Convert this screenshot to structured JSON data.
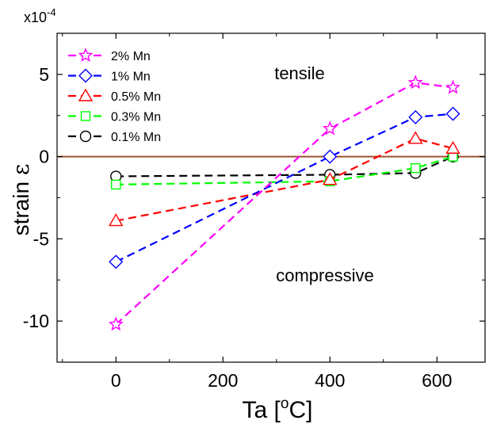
{
  "chart_data": {
    "type": "line",
    "multiplier_label": "x10",
    "multiplier_exp": "-4",
    "xlabel_main": "Ta [",
    "xlabel_sup": "o",
    "xlabel_end": "C]",
    "ylabel_main": "strain ",
    "ylabel_symbol": "ε",
    "xlim": [
      -110,
      690
    ],
    "ylim": [
      -12.5,
      7.5
    ],
    "x_ticks": [
      0,
      200,
      400,
      600
    ],
    "x_tick_labels": [
      "0",
      "200",
      "400",
      "600"
    ],
    "x_minor_ticks": [
      -100,
      100,
      300,
      500
    ],
    "y_ticks": [
      -10,
      -5,
      0,
      5
    ],
    "y_tick_labels": [
      "-10",
      "-5",
      "0",
      "5"
    ],
    "y_minor_ticks": [
      -7.5,
      -2.5,
      2.5
    ],
    "zero_line": {
      "y": 0,
      "color": "#a0522d"
    },
    "annotations": [
      "tensile",
      "compressive"
    ],
    "legend_position": "top-left",
    "series": [
      {
        "name": "2% Mn",
        "color": "#ff00ff",
        "marker": "star",
        "x": [
          0,
          400,
          560,
          630
        ],
        "y": [
          -10.2,
          1.7,
          4.5,
          4.2
        ]
      },
      {
        "name": "1% Mn",
        "color": "#0000ff",
        "marker": "diamond",
        "x": [
          0,
          400,
          560,
          630
        ],
        "y": [
          -6.4,
          0.0,
          2.4,
          2.6
        ]
      },
      {
        "name": "0.5% Mn",
        "color": "#ff0000",
        "marker": "triangle",
        "x": [
          0,
          400,
          560,
          630
        ],
        "y": [
          -3.9,
          -1.4,
          1.1,
          0.5
        ]
      },
      {
        "name": "0.3% Mn",
        "color": "#00ff00",
        "marker": "square",
        "x": [
          0,
          400,
          560,
          630
        ],
        "y": [
          -1.7,
          -1.5,
          -0.7,
          0.0
        ]
      },
      {
        "name": "0.1% Mn",
        "color": "#000000",
        "marker": "circle",
        "x": [
          0,
          400,
          560,
          630
        ],
        "y": [
          -1.2,
          -1.1,
          -1.0,
          0.0
        ]
      }
    ]
  }
}
